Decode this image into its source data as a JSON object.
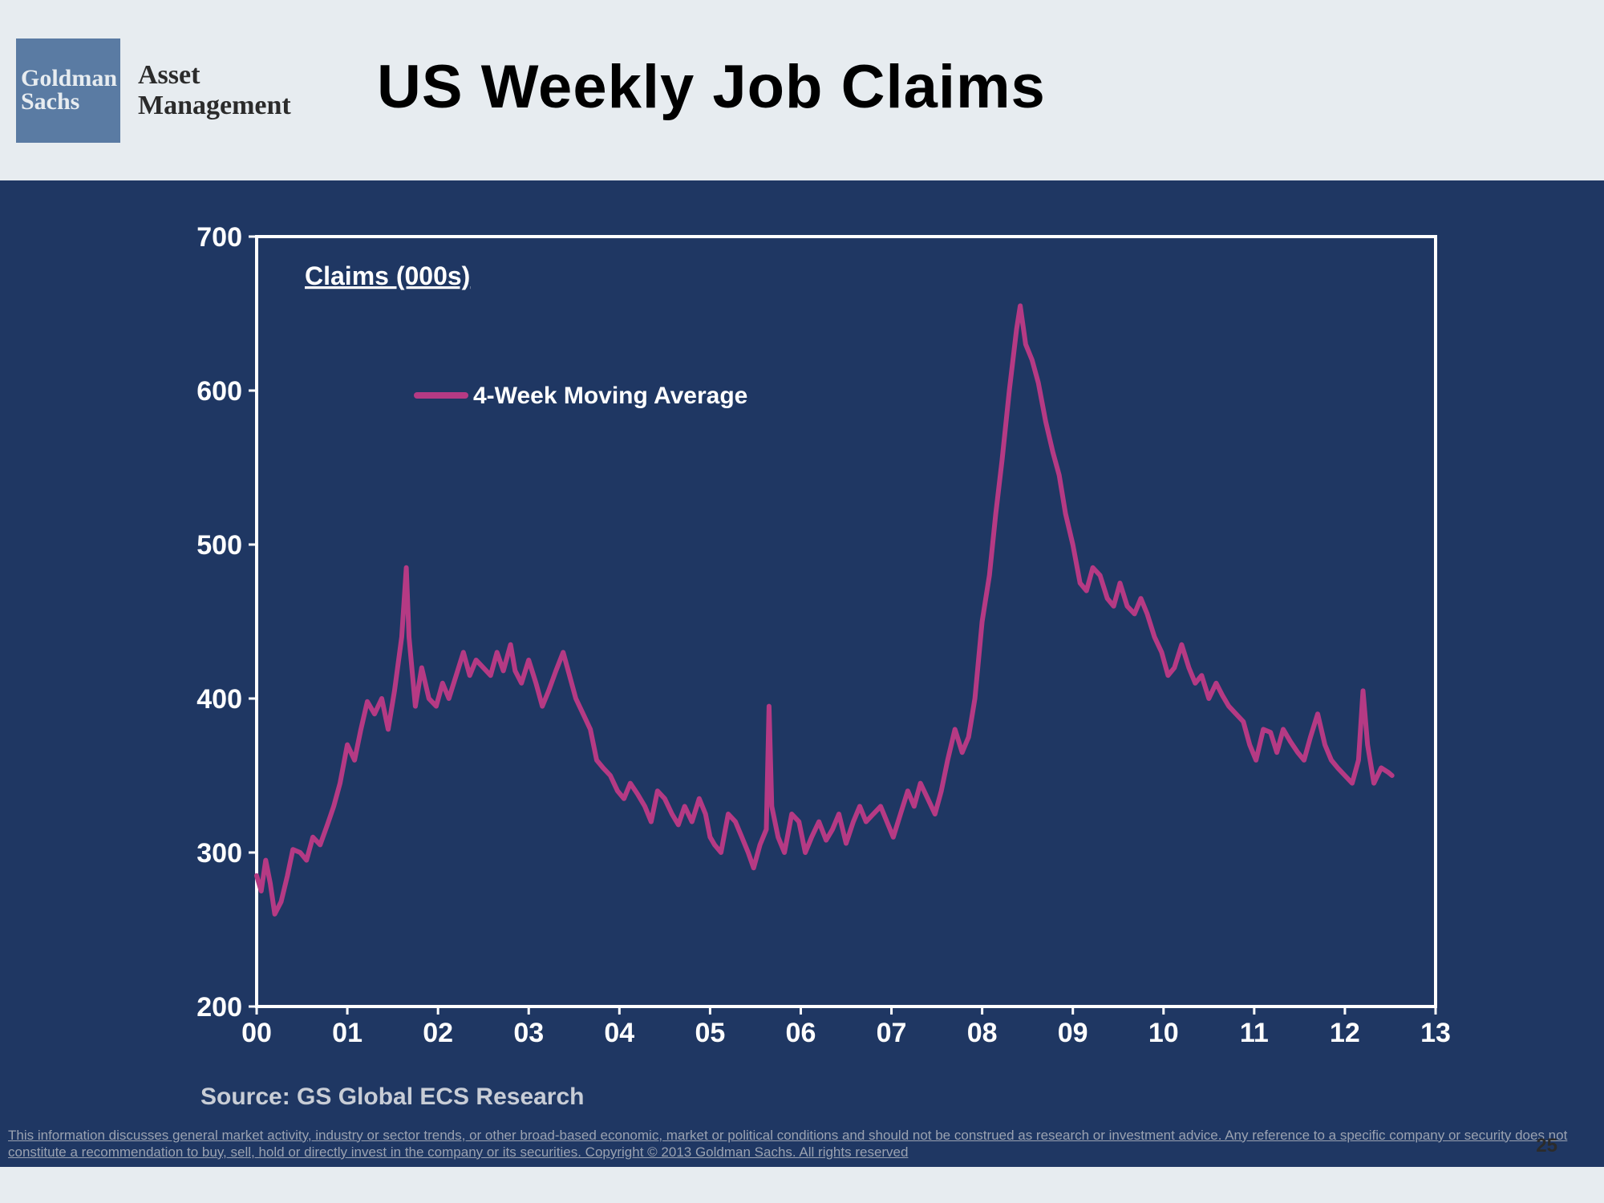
{
  "header": {
    "logo_line1": "Goldman",
    "logo_line2": "Sachs",
    "brand_sub_line1": "Asset",
    "brand_sub_line2": "Management",
    "title": "US Weekly Job Claims"
  },
  "chart": {
    "type": "line",
    "background_color": "#1f3763",
    "plot_border_color": "#ffffff",
    "plot_border_width": 4,
    "ylim": [
      200,
      700
    ],
    "ytick_step": 100,
    "yticks": [
      200,
      300,
      400,
      500,
      600,
      700
    ],
    "xlabels": [
      "00",
      "01",
      "02",
      "03",
      "04",
      "05",
      "06",
      "07",
      "08",
      "09",
      "10",
      "11",
      "12",
      "13"
    ],
    "series_label_text": "Claims (000s)",
    "legend_text": "4-Week Moving Average",
    "axis_label_color": "#ffffff",
    "axis_label_fontsize": 34,
    "tick_color": "#ffffff",
    "tick_length": 10,
    "line_color": "#b53a84",
    "line_width": 6,
    "legend_line_width": 8,
    "data": [
      [
        0.0,
        285
      ],
      [
        0.05,
        275
      ],
      [
        0.1,
        295
      ],
      [
        0.15,
        280
      ],
      [
        0.2,
        260
      ],
      [
        0.27,
        268
      ],
      [
        0.34,
        285
      ],
      [
        0.4,
        302
      ],
      [
        0.48,
        300
      ],
      [
        0.55,
        295
      ],
      [
        0.62,
        310
      ],
      [
        0.7,
        305
      ],
      [
        0.78,
        318
      ],
      [
        0.85,
        330
      ],
      [
        0.92,
        345
      ],
      [
        1.0,
        370
      ],
      [
        1.08,
        360
      ],
      [
        1.15,
        380
      ],
      [
        1.22,
        398
      ],
      [
        1.3,
        390
      ],
      [
        1.38,
        400
      ],
      [
        1.45,
        380
      ],
      [
        1.52,
        405
      ],
      [
        1.6,
        440
      ],
      [
        1.65,
        485
      ],
      [
        1.68,
        440
      ],
      [
        1.75,
        395
      ],
      [
        1.82,
        420
      ],
      [
        1.9,
        400
      ],
      [
        1.98,
        395
      ],
      [
        2.05,
        410
      ],
      [
        2.12,
        400
      ],
      [
        2.2,
        415
      ],
      [
        2.28,
        430
      ],
      [
        2.35,
        415
      ],
      [
        2.42,
        425
      ],
      [
        2.5,
        420
      ],
      [
        2.58,
        415
      ],
      [
        2.65,
        430
      ],
      [
        2.72,
        418
      ],
      [
        2.8,
        435
      ],
      [
        2.85,
        418
      ],
      [
        2.92,
        410
      ],
      [
        3.0,
        425
      ],
      [
        3.08,
        410
      ],
      [
        3.15,
        395
      ],
      [
        3.22,
        405
      ],
      [
        3.3,
        418
      ],
      [
        3.38,
        430
      ],
      [
        3.45,
        415
      ],
      [
        3.52,
        400
      ],
      [
        3.6,
        390
      ],
      [
        3.68,
        380
      ],
      [
        3.75,
        360
      ],
      [
        3.82,
        355
      ],
      [
        3.9,
        350
      ],
      [
        3.98,
        340
      ],
      [
        4.05,
        335
      ],
      [
        4.12,
        345
      ],
      [
        4.2,
        338
      ],
      [
        4.28,
        330
      ],
      [
        4.35,
        320
      ],
      [
        4.42,
        340
      ],
      [
        4.5,
        335
      ],
      [
        4.58,
        325
      ],
      [
        4.65,
        318
      ],
      [
        4.72,
        330
      ],
      [
        4.8,
        320
      ],
      [
        4.88,
        335
      ],
      [
        4.95,
        325
      ],
      [
        5.0,
        310
      ],
      [
        5.05,
        305
      ],
      [
        5.12,
        300
      ],
      [
        5.2,
        325
      ],
      [
        5.28,
        320
      ],
      [
        5.35,
        310
      ],
      [
        5.42,
        300
      ],
      [
        5.48,
        290
      ],
      [
        5.55,
        305
      ],
      [
        5.62,
        315
      ],
      [
        5.65,
        395
      ],
      [
        5.68,
        330
      ],
      [
        5.75,
        310
      ],
      [
        5.82,
        300
      ],
      [
        5.9,
        325
      ],
      [
        5.98,
        320
      ],
      [
        6.05,
        300
      ],
      [
        6.12,
        310
      ],
      [
        6.2,
        320
      ],
      [
        6.28,
        308
      ],
      [
        6.35,
        315
      ],
      [
        6.42,
        325
      ],
      [
        6.5,
        306
      ],
      [
        6.58,
        320
      ],
      [
        6.65,
        330
      ],
      [
        6.72,
        320
      ],
      [
        6.8,
        325
      ],
      [
        6.88,
        330
      ],
      [
        6.95,
        320
      ],
      [
        7.02,
        310
      ],
      [
        7.1,
        325
      ],
      [
        7.18,
        340
      ],
      [
        7.25,
        330
      ],
      [
        7.32,
        345
      ],
      [
        7.4,
        335
      ],
      [
        7.48,
        325
      ],
      [
        7.55,
        340
      ],
      [
        7.62,
        360
      ],
      [
        7.7,
        380
      ],
      [
        7.78,
        365
      ],
      [
        7.85,
        375
      ],
      [
        7.92,
        400
      ],
      [
        8.0,
        450
      ],
      [
        8.08,
        480
      ],
      [
        8.15,
        520
      ],
      [
        8.22,
        555
      ],
      [
        8.3,
        600
      ],
      [
        8.38,
        640
      ],
      [
        8.42,
        655
      ],
      [
        8.48,
        630
      ],
      [
        8.55,
        620
      ],
      [
        8.62,
        605
      ],
      [
        8.7,
        580
      ],
      [
        8.78,
        560
      ],
      [
        8.85,
        545
      ],
      [
        8.92,
        520
      ],
      [
        9.0,
        500
      ],
      [
        9.08,
        475
      ],
      [
        9.15,
        470
      ],
      [
        9.22,
        485
      ],
      [
        9.3,
        480
      ],
      [
        9.38,
        465
      ],
      [
        9.45,
        460
      ],
      [
        9.52,
        475
      ],
      [
        9.6,
        460
      ],
      [
        9.68,
        455
      ],
      [
        9.75,
        465
      ],
      [
        9.82,
        455
      ],
      [
        9.9,
        440
      ],
      [
        9.98,
        430
      ],
      [
        10.05,
        415
      ],
      [
        10.12,
        420
      ],
      [
        10.2,
        435
      ],
      [
        10.28,
        420
      ],
      [
        10.35,
        410
      ],
      [
        10.42,
        415
      ],
      [
        10.5,
        400
      ],
      [
        10.58,
        410
      ],
      [
        10.65,
        402
      ],
      [
        10.72,
        395
      ],
      [
        10.8,
        390
      ],
      [
        10.88,
        385
      ],
      [
        10.95,
        370
      ],
      [
        11.02,
        360
      ],
      [
        11.1,
        380
      ],
      [
        11.18,
        378
      ],
      [
        11.25,
        365
      ],
      [
        11.32,
        380
      ],
      [
        11.4,
        372
      ],
      [
        11.48,
        365
      ],
      [
        11.55,
        360
      ],
      [
        11.62,
        375
      ],
      [
        11.7,
        390
      ],
      [
        11.78,
        370
      ],
      [
        11.85,
        360
      ],
      [
        11.92,
        355
      ],
      [
        12.0,
        350
      ],
      [
        12.08,
        345
      ],
      [
        12.15,
        360
      ],
      [
        12.2,
        405
      ],
      [
        12.25,
        370
      ],
      [
        12.32,
        345
      ],
      [
        12.4,
        355
      ],
      [
        12.48,
        352
      ],
      [
        12.52,
        350
      ]
    ]
  },
  "footer": {
    "source": "Source: GS Global ECS Research",
    "disclaimer": "This information discusses general market activity, industry or sector trends, or other broad-based economic, market or political conditions and should not be construed as research or investment advice.  Any reference to a specific company or security does not constitute a recommendation to buy, sell, hold or directly invest in the company or its securities. Copyright © 2013 Goldman Sachs. All rights reserved",
    "page_number": "25"
  }
}
